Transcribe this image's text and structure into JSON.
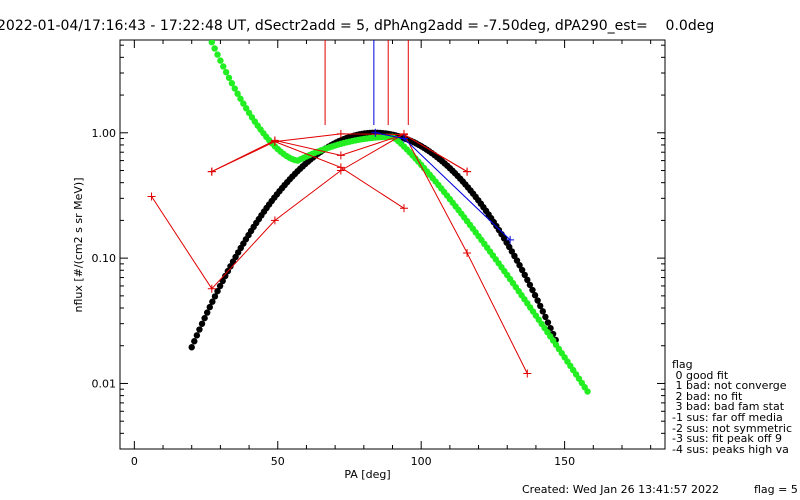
{
  "title": "2022-01-04/17:16:43 - 17:22:48 UT, dSectr2add = 5, dPhAng2add = -7.50deg, dPA290_est=    0.0deg",
  "footer": {
    "created": "Created: Wed Jan 26 13:41:57 2022",
    "flag_text": "flag = 5"
  },
  "legend": {
    "header": "flag",
    "items": [
      " 0 good fit",
      " 1 bad: not converge",
      " 2 bad: no fit",
      " 3 bad: bad fam stat",
      "-1 sus: far off media",
      "-2 sus: not symmetric",
      "-3 sus: fit peak off 9",
      "-4 sus: peaks high va"
    ]
  },
  "colors": {
    "red": "#e00000",
    "blue": "#0000e0",
    "green": "#22ee22",
    "black": "#000000"
  },
  "chart_data": {
    "type": "scatter",
    "xlabel": "PA [deg]",
    "ylabel": "nflux [#/(cm2 s sr MeV)]",
    "xlim": [
      -5,
      185
    ],
    "ylim": [
      0.003,
      5.5
    ],
    "yscale": "log",
    "xticks": [
      0,
      50,
      100,
      150
    ],
    "xtick_labels": [
      "0",
      "50",
      "100",
      "150"
    ],
    "yticks": [
      0.01,
      0.1,
      1.0
    ],
    "ytick_labels": [
      "0.01",
      "0.10",
      "1.00"
    ],
    "red_series": [
      [
        [
          6,
          0.31
        ],
        [
          27,
          0.057
        ],
        [
          49,
          0.2
        ],
        [
          72,
          0.5
        ],
        [
          94,
          0.98
        ],
        [
          116,
          0.11
        ],
        [
          137,
          0.012
        ]
      ],
      [
        [
          27,
          0.49
        ],
        [
          49,
          0.87
        ],
        [
          72,
          0.66
        ],
        [
          94,
          0.97
        ],
        [
          116,
          0.49
        ]
      ],
      [
        [
          27,
          0.49
        ],
        [
          49,
          0.85
        ],
        [
          72,
          0.98
        ],
        [
          94,
          0.97
        ],
        [
          116,
          0.49
        ]
      ],
      [
        [
          49,
          0.85
        ],
        [
          72,
          0.53
        ],
        [
          94,
          0.25
        ]
      ]
    ],
    "blue_series": [
      [
        [
          84,
          1.0
        ],
        [
          94,
          0.9
        ],
        [
          131,
          0.14
        ]
      ]
    ],
    "vertical_lines": [
      {
        "x": 66.5,
        "color": "red"
      },
      {
        "x": 83.5,
        "color": "blue"
      },
      {
        "x": 88.5,
        "color": "red"
      },
      {
        "x": 95.5,
        "color": "red"
      }
    ],
    "fit_black": {
      "amplitude": 1.0,
      "center": 84,
      "sigma": 22.8,
      "x_range": [
        20,
        147.5
      ]
    },
    "fit_green": {
      "base": 0.6,
      "peak": 0.93,
      "x_peak": 90,
      "x_min": 57,
      "x_start": 24,
      "x_end": 158.5
    }
  }
}
